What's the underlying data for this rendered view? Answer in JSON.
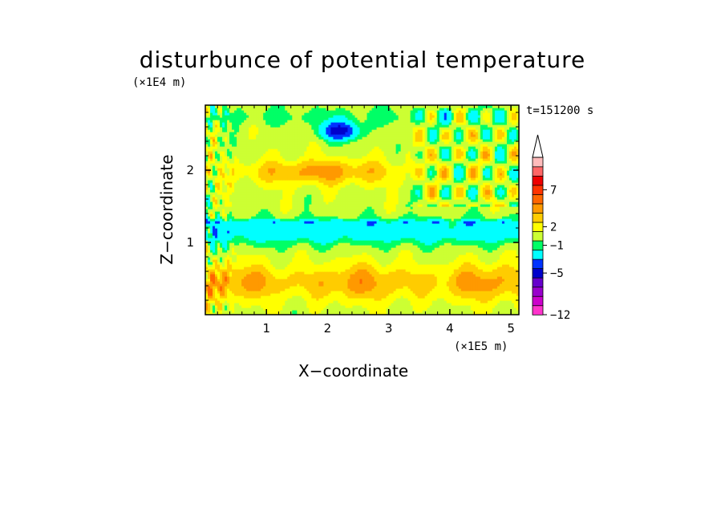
{
  "chart_data": {
    "type": "heatmap",
    "title": "disturbunce of potential temperature",
    "time_label": "t=151200 s",
    "xlabel": "X−coordinate",
    "ylabel": "Z−coordinate",
    "x_unit": "(×1E5 m)",
    "y_unit": "(×1E4 m)",
    "xlim": [
      0,
      5.13
    ],
    "ylim": [
      0,
      2.9
    ],
    "x_ticks": [
      "1",
      "2",
      "3",
      "4",
      "5"
    ],
    "y_ticks": [
      "1",
      "2"
    ],
    "colorbar": {
      "levels": [
        -12,
        -11,
        -10,
        -9,
        -8,
        -7,
        -6,
        -5,
        -4,
        -3,
        -2,
        -1,
        0,
        1,
        2,
        3,
        4,
        5,
        6,
        7,
        8,
        9,
        10
      ],
      "labels": [
        "−12",
        "−5",
        "−1",
        "2",
        "7"
      ],
      "label_values": [
        -12,
        -5,
        -1,
        2,
        7
      ],
      "colors": [
        "#ff33cc",
        "#cc00cc",
        "#9900cc",
        "#6600cc",
        "#0000cc",
        "#0033ff",
        "#00ffff",
        "#00ff66",
        "#ccff33",
        "#ffff00",
        "#ffcc00",
        "#ff9900",
        "#ff6600",
        "#ff3300",
        "#ee0000",
        "#ff6666",
        "#ffbbbb"
      ],
      "extend_max": true
    },
    "features": [
      {
        "x": 2.2,
        "z": 2.55,
        "value": -6,
        "note": ""
      },
      {
        "x": 2.4,
        "z": 1.25,
        "value": -1,
        "note": ""
      }
    ]
  }
}
